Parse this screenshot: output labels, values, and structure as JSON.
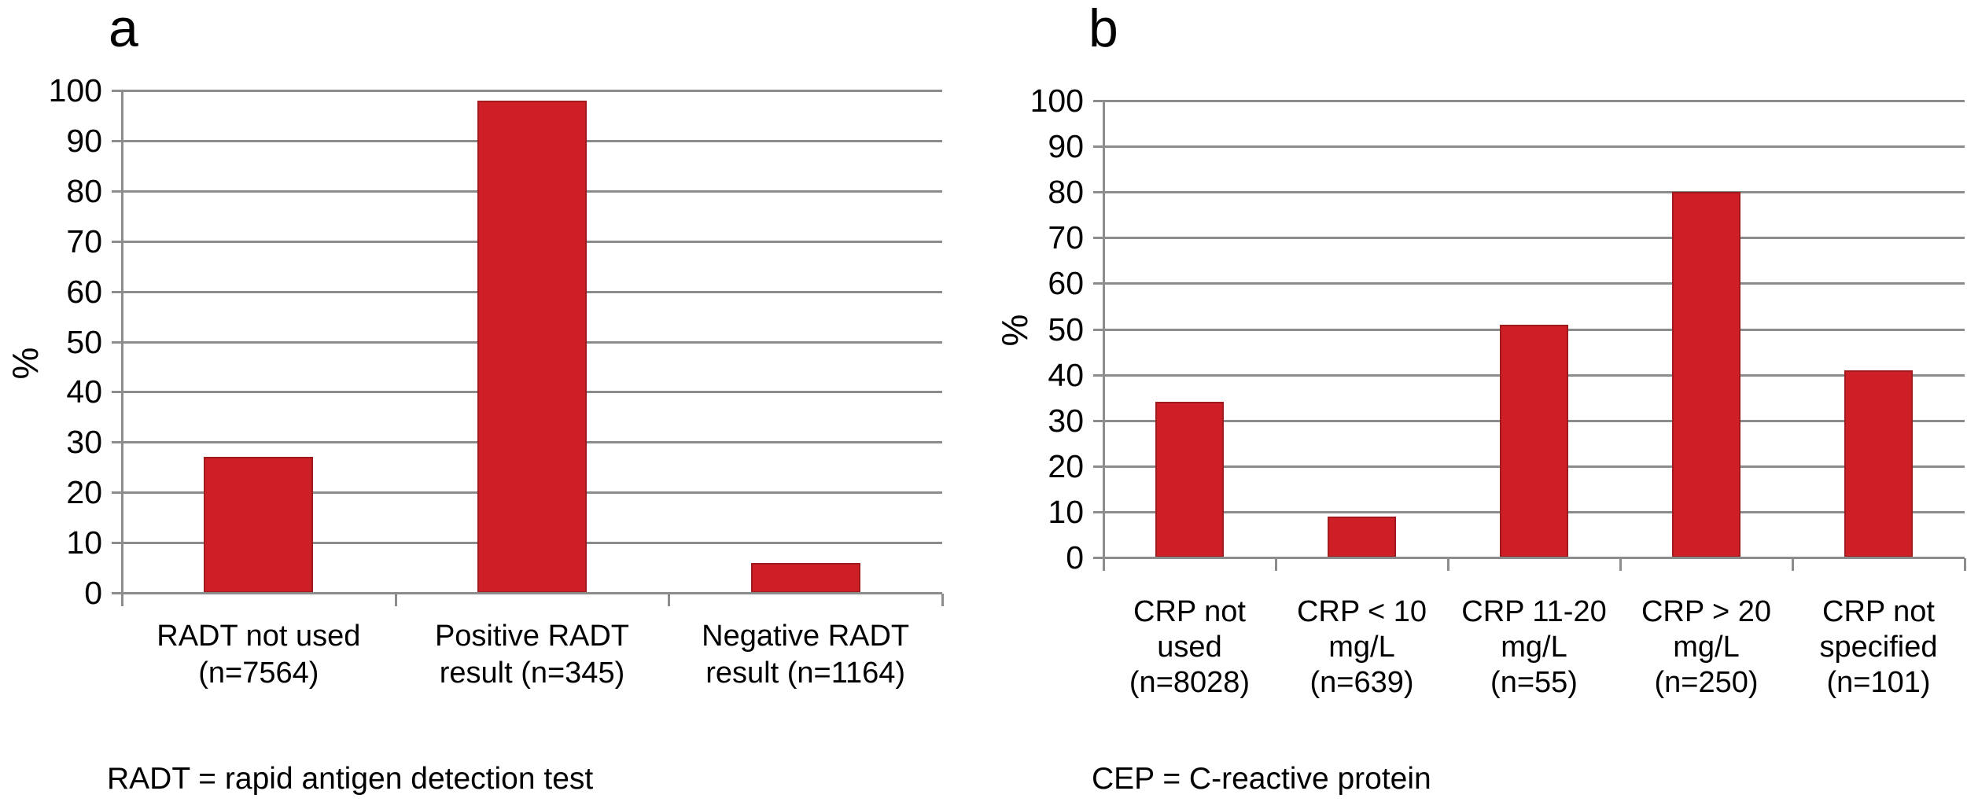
{
  "figure": {
    "background": "#ffffff",
    "bar_color": "#CE1E26",
    "bar_border_color": "#A01A1E",
    "grid_color": "#8C8C8C",
    "axis_color": "#8C8C8C",
    "text_color": "#000000"
  },
  "chart_data": [
    {
      "type": "bar",
      "panel_label": "a",
      "ylabel": "%",
      "ylim": [
        0,
        100
      ],
      "yticks": [
        0,
        10,
        20,
        30,
        40,
        50,
        60,
        70,
        80,
        90,
        100
      ],
      "grid": true,
      "legend_position": "none",
      "categories": [
        "RADT not used (n=7564)",
        "Positive RADT result (n=345)",
        "Negative RADT result (n=1164)"
      ],
      "category_label_lines": [
        [
          "RADT not used",
          "(n=7564)"
        ],
        [
          "Positive RADT",
          "result (n=345)"
        ],
        [
          "Negative RADT",
          "result (n=1164)"
        ]
      ],
      "values": [
        27,
        98,
        6
      ],
      "footnote": "RADT = rapid antigen detection test"
    },
    {
      "type": "bar",
      "panel_label": "b",
      "ylabel": "%",
      "ylim": [
        0,
        100
      ],
      "yticks": [
        0,
        10,
        20,
        30,
        40,
        50,
        60,
        70,
        80,
        90,
        100
      ],
      "grid": true,
      "legend_position": "none",
      "categories": [
        "CRP not used (n=8028)",
        "CRP < 10 mg/L (n=639)",
        "CRP 11-20 mg/L (n=55)",
        "CRP > 20 mg/L (n=250)",
        "CRP not specified (n=101)"
      ],
      "category_label_lines": [
        [
          "CRP not",
          "used",
          "(n=8028)"
        ],
        [
          "CRP < 10",
          "mg/L",
          "(n=639)"
        ],
        [
          "CRP 11-20",
          "mg/L",
          "(n=55)"
        ],
        [
          "CRP > 20",
          "mg/L",
          "(n=250)"
        ],
        [
          "CRP not",
          "specified",
          "(n=101)"
        ]
      ],
      "values": [
        34,
        9,
        51,
        80,
        41
      ],
      "footnote": "CEP = C-reactive protein"
    }
  ]
}
